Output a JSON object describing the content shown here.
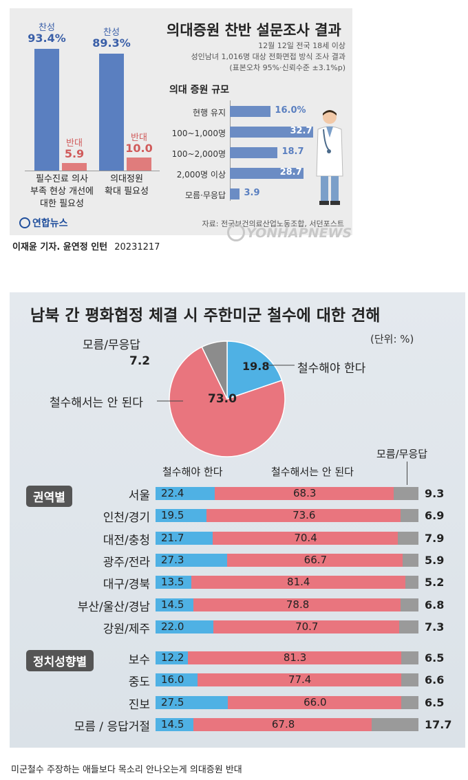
{
  "top": {
    "title": "의대증원 찬반 설문조사 결과",
    "meta1": "12월 12일 전국 18세 이상",
    "meta2": "성인남녀 1,016명 대상 전화면접 방식 조사 결과",
    "meta3": "(표본오차 95%·신뢰수준 ±3.1%p)",
    "subtitle": "의대 증원 규모",
    "source": "자료: 전국보건의료산업노동조합, 서던포스트",
    "logo_text": "연합뉴스",
    "watermark": "YONHAPNEWS",
    "credit": "이재윤 기자. 윤연정 인턴",
    "credit_date": "20231217"
  },
  "chart_data": [
    {
      "type": "bar",
      "categories": [
        "필수진료 의사 부족 현상 개선에 대한 필요성",
        "의대정원 확대 필요성"
      ],
      "category_lines": [
        [
          "필수진료 의사",
          "부족 현상 개선에",
          "대한 필요성"
        ],
        [
          "의대정원",
          "확대 필요성"
        ]
      ],
      "series": [
        {
          "name": "찬성",
          "values": [
            93.4,
            89.3
          ],
          "labels": [
            "93.4%",
            "89.3%"
          ]
        },
        {
          "name": "반대",
          "values": [
            5.9,
            10.0
          ],
          "labels": [
            "5.9",
            "10.0"
          ]
        }
      ],
      "ylim": [
        0,
        100
      ]
    },
    {
      "type": "bar",
      "orientation": "horizontal",
      "title": "의대 증원 규모",
      "categories": [
        "현행 유지",
        "100~1,000명",
        "100~2,000명",
        "2,000명 이상",
        "모름·무응답"
      ],
      "values": [
        16.0,
        32.7,
        18.7,
        28.7,
        3.9
      ],
      "labels": [
        "16.0%",
        "32.7",
        "18.7",
        "28.7",
        "3.9"
      ],
      "xlim": [
        0,
        35
      ]
    },
    {
      "type": "pie",
      "title": "남북 간 평화협정 체결 시 주한미군 철수에 대한 견해",
      "unit": "(단위: %)",
      "labels": [
        "철수해야 한다",
        "철수해서는 안 된다",
        "모름/무응답"
      ],
      "values": [
        19.8,
        73.0,
        7.2
      ],
      "value_labels": [
        "19.8",
        "73.0",
        "7.2"
      ],
      "colors": [
        "#4fb1e4",
        "#e9757e",
        "#8c8c8c"
      ]
    },
    {
      "type": "bar",
      "orientation": "horizontal",
      "stacked": true,
      "legend": [
        "철수해야 한다",
        "철수해서는 안 된다",
        "모름/무응답"
      ],
      "groups": [
        {
          "name": "권역별",
          "rows": [
            {
              "label": "서울",
              "values": [
                22.4,
                68.3,
                9.3
              ],
              "texts": [
                "22.4",
                "68.3",
                "9.3"
              ]
            },
            {
              "label": "인천/경기",
              "values": [
                19.5,
                73.6,
                6.9
              ],
              "texts": [
                "19.5",
                "73.6",
                "6.9"
              ]
            },
            {
              "label": "대전/충청",
              "values": [
                21.7,
                70.4,
                7.9
              ],
              "texts": [
                "21.7",
                "70.4",
                "7.9"
              ]
            },
            {
              "label": "광주/전라",
              "values": [
                27.3,
                66.7,
                5.9
              ],
              "texts": [
                "27.3",
                "66.7",
                "5.9"
              ]
            },
            {
              "label": "대구/경북",
              "values": [
                13.5,
                81.4,
                5.2
              ],
              "texts": [
                "13.5",
                "81.4",
                "5.2"
              ]
            },
            {
              "label": "부산/울산/경남",
              "values": [
                14.5,
                78.8,
                6.8
              ],
              "texts": [
                "14.5",
                "78.8",
                "6.8"
              ]
            },
            {
              "label": "강원/제주",
              "values": [
                22.0,
                70.7,
                7.3
              ],
              "texts": [
                "22.0",
                "70.7",
                "7.3"
              ]
            }
          ]
        },
        {
          "name": "정치성향별",
          "rows": [
            {
              "label": "보수",
              "values": [
                12.2,
                81.3,
                6.5
              ],
              "texts": [
                "12.2",
                "81.3",
                "6.5"
              ]
            },
            {
              "label": "중도",
              "values": [
                16.0,
                77.4,
                6.6
              ],
              "texts": [
                "16.0",
                "77.4",
                "6.6"
              ]
            },
            {
              "label": "진보",
              "values": [
                27.5,
                66.0,
                6.5
              ],
              "texts": [
                "27.5",
                "66.0",
                "6.5"
              ]
            },
            {
              "label": "모름 / 응답거절",
              "values": [
                14.5,
                67.8,
                17.7
              ],
              "texts": [
                "14.5",
                "67.8",
                "17.7"
              ]
            }
          ]
        }
      ]
    }
  ],
  "caption": "미군철수 주장하는 애들보다 목소리 안나오는게 의대증원 반대"
}
